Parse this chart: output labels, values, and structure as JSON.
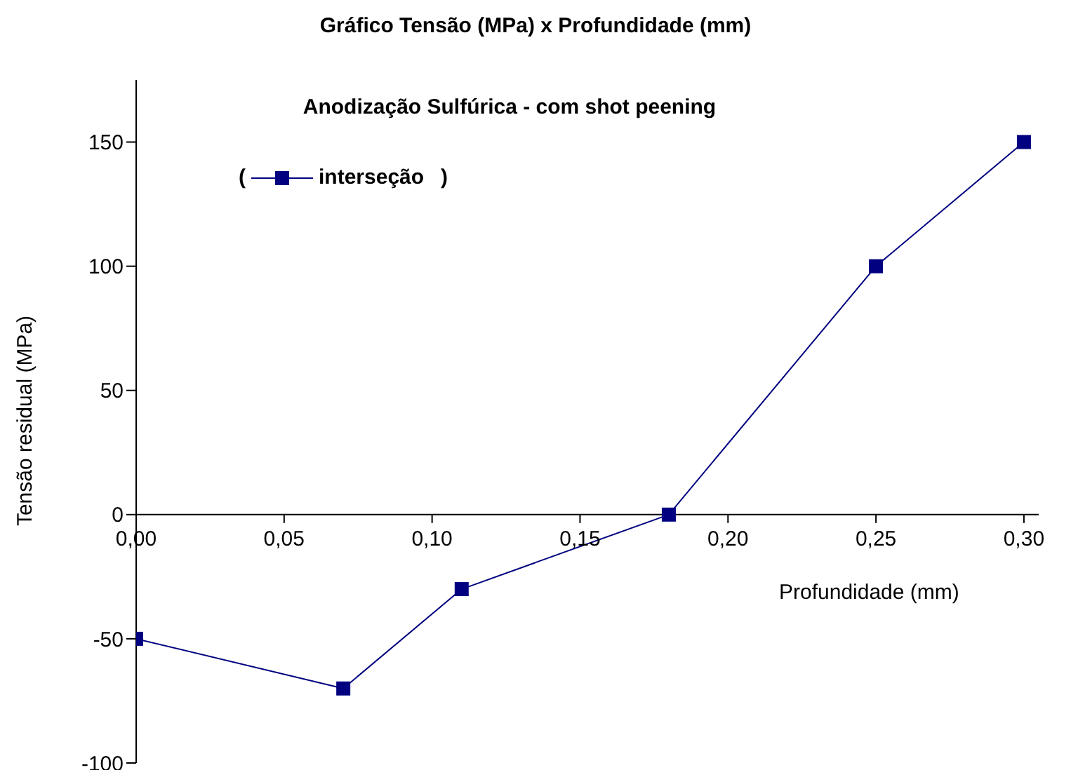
{
  "chart_data": {
    "type": "line",
    "title": "Gráfico Tensão (MPa) x Profundidade (mm)",
    "subtitle": "Anodização Sulfúrica - com shot peening",
    "xlabel": "Profundidade (mm)",
    "ylabel": "Tensão residual (MPa)",
    "x": [
      0,
      0.07,
      0.11,
      0.18,
      0.25,
      0.3
    ],
    "series": [
      {
        "name": "interseção",
        "color": "#000080",
        "values": [
          -50,
          -70,
          -30,
          0,
          100,
          150
        ]
      }
    ],
    "xlim": [
      0,
      0.305
    ],
    "ylim": [
      -100,
      175
    ],
    "xticks": [
      {
        "value": 0,
        "label": "0,00"
      },
      {
        "value": 0.05,
        "label": "0,05"
      },
      {
        "value": 0.1,
        "label": "0,10"
      },
      {
        "value": 0.15,
        "label": "0,15"
      },
      {
        "value": 0.2,
        "label": "0,20"
      },
      {
        "value": 0.25,
        "label": "0,25"
      },
      {
        "value": 0.3,
        "label": "0,30"
      }
    ],
    "yticks": [
      -100,
      -50,
      0,
      50,
      100,
      150
    ],
    "annotations": [
      "(",
      ")"
    ],
    "marker": "square",
    "line_style": "solid",
    "grid": false,
    "legend": "top left"
  }
}
